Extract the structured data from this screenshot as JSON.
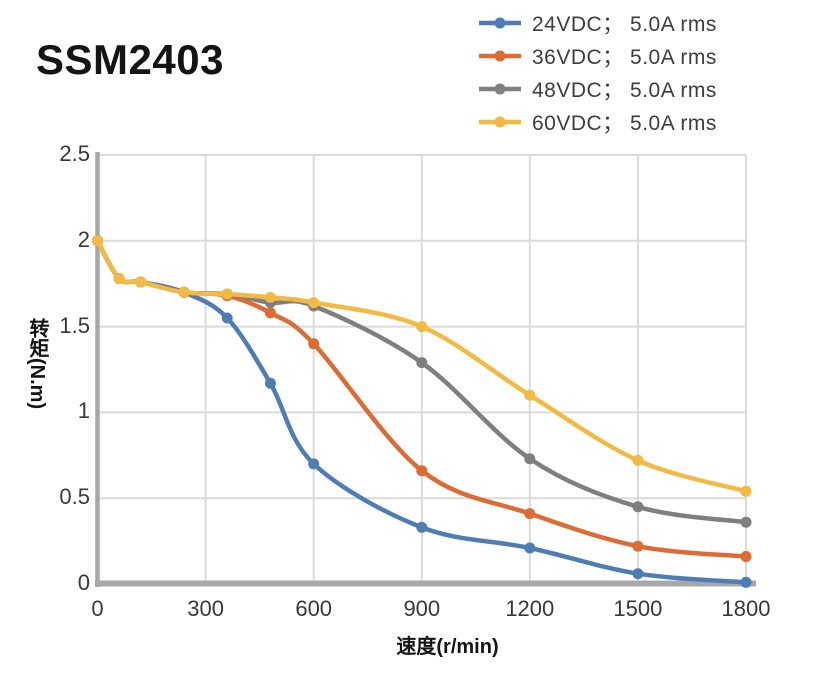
{
  "page": {
    "title": "SSM2403"
  },
  "chart_data": {
    "type": "line",
    "title": "SSM2403",
    "xlabel": "速度(r/min)",
    "ylabel": "转矩(N.m)",
    "xlim": [
      0,
      1800
    ],
    "ylim": [
      0,
      2.5
    ],
    "xticks": [
      "0",
      "300",
      "600",
      "900",
      "1200",
      "1500",
      "1800"
    ],
    "yticks": [
      "0",
      "0.5",
      "1",
      "1.5",
      "2",
      "2.5"
    ],
    "grid": true,
    "line_style": "smooth",
    "marker": "circle",
    "legend_position": "top-right",
    "axis_color": "#A8A8A8",
    "grid_color": "#DBDBDB",
    "tick_text_color": "#383838",
    "x": [
      0,
      60,
      120,
      240,
      360,
      480,
      600,
      900,
      1200,
      1500,
      1800
    ],
    "series": [
      {
        "name": "24VDC； 5.0A rms",
        "color": "#4E7CB5",
        "values": [
          2.0,
          1.78,
          1.76,
          1.7,
          1.55,
          1.17,
          0.7,
          0.33,
          0.21,
          0.06,
          0.01
        ]
      },
      {
        "name": "36VDC； 5.0A rms",
        "color": "#DD6B33",
        "values": [
          2.0,
          1.78,
          1.76,
          1.7,
          1.68,
          1.58,
          1.4,
          0.66,
          0.41,
          0.22,
          0.16
        ]
      },
      {
        "name": "48VDC； 5.0A rms",
        "color": "#7F7F7F",
        "values": [
          2.0,
          1.78,
          1.76,
          1.7,
          1.69,
          1.64,
          1.62,
          1.29,
          0.73,
          0.45,
          0.36
        ]
      },
      {
        "name": "60VDC； 5.0A rms",
        "color": "#F2BA42",
        "values": [
          2.0,
          1.78,
          1.76,
          1.7,
          1.69,
          1.67,
          1.64,
          1.5,
          1.1,
          0.72,
          0.54
        ]
      }
    ]
  }
}
